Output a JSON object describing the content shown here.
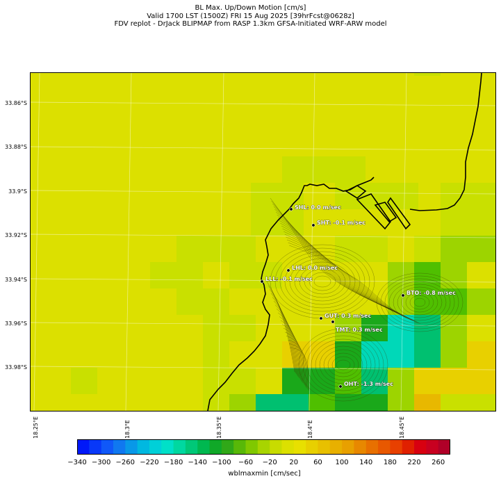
{
  "header": {
    "line1": "BL Max. Up/Down Motion [cm/s]",
    "line2": "Valid 1700 LST (1500Z) FRI 15 Aug 2025 [39hrFcst@0628z]",
    "line3": "FDV replot - DrJack BLIPMAP from RASP 1.3km GFSA-Initiated WRF-ARW model"
  },
  "map": {
    "lat_ticks": [
      "33.86°S",
      "33.88°S",
      "33.9°S",
      "33.92°S",
      "33.94°S",
      "33.96°S",
      "33.98°S"
    ],
    "lon_ticks": [
      "18.25°E",
      "18.3°E",
      "18.35°E",
      "18.4°E",
      "18.45°E"
    ],
    "stations": [
      {
        "code": "SHL",
        "label": "SHL: 0.0 m/sec",
        "lat": -33.909,
        "lon": 18.375,
        "value": 0.0
      },
      {
        "code": "SHT",
        "label": "SHT: -0.1 m/sec",
        "lat": -33.916,
        "lon": 18.389,
        "value": -0.1
      },
      {
        "code": "LHL",
        "label": "LHL: 0.0 m/sec",
        "lat": -33.936,
        "lon": 18.374,
        "value": 0.0
      },
      {
        "code": "LLL",
        "label": "LLL: -0.1 m/sec",
        "lat": -33.941,
        "lon": 18.361,
        "value": -0.1
      },
      {
        "code": "BTO",
        "label": "BTO: -0.8 m/sec",
        "lat": -33.947,
        "lon": 18.443,
        "value": -0.8
      },
      {
        "code": "GUT",
        "label": "GUT: 0.3 m/sec",
        "lat": -33.958,
        "lon": 18.407,
        "value": 0.3
      },
      {
        "code": "TMT",
        "label": "TMT: 0.3 m/sec",
        "lat": -33.959,
        "lon": 18.412,
        "value": 0.3
      },
      {
        "code": "OHT",
        "label": "OHT: -1.3 m/sec",
        "lat": -33.988,
        "lon": 18.414,
        "value": -1.3
      }
    ],
    "colors": {
      "base": "#dce000",
      "light_green": "#c9e000",
      "mid_green": "#9dd400",
      "green": "#4fbf00",
      "dark_green": "#1aa81a",
      "teal": "#00c070",
      "cyan": "#00d8b8",
      "gold": "#e8d000",
      "orange": "#e8b800"
    }
  },
  "colorbar": {
    "label": "wblmaxmin [cm/sec]",
    "ticks": [
      "−340",
      "−300",
      "−260",
      "−220",
      "−180",
      "−140",
      "−100",
      "−60",
      "−20",
      "20",
      "60",
      "100",
      "140",
      "180",
      "220",
      "260"
    ],
    "levels_min": -340,
    "levels_max": 280,
    "step": 20,
    "colors": [
      "#0018f8",
      "#0838f8",
      "#1058f8",
      "#1078f0",
      "#0898e8",
      "#00b8e0",
      "#00d0d8",
      "#00e0c8",
      "#00d8a0",
      "#00c878",
      "#00b850",
      "#10a828",
      "#30a818",
      "#58b808",
      "#80c800",
      "#a8d400",
      "#c8dc00",
      "#dce000",
      "#e8e000",
      "#e8d000",
      "#e8c000",
      "#e8b000",
      "#e8a000",
      "#e88800",
      "#e87000",
      "#e85800",
      "#e84000",
      "#e02000",
      "#d80010",
      "#c80020",
      "#b00028"
    ]
  }
}
